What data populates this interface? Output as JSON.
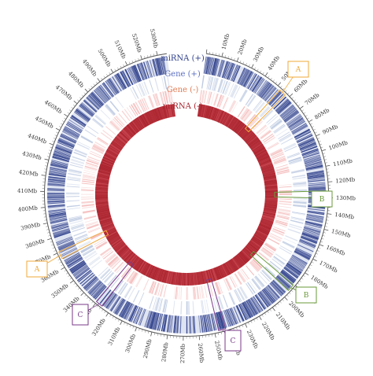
{
  "track_labels": [
    {
      "text": "miRNA (+)",
      "color": "#2e3f8a"
    },
    {
      "text": "Gene (+)",
      "color": "#5b6fc0"
    },
    {
      "text": "Gene (-)",
      "color": "#e07a52"
    },
    {
      "text": "miRNA (-)",
      "color": "#a8232d"
    }
  ],
  "tick_labels": [
    "10Mb",
    "20Mb",
    "30Mb",
    "40Mb",
    "50Mb",
    "60Mb",
    "70Mb",
    "80Mb",
    "90Mb",
    "100Mb",
    "110Mb",
    "120Mb",
    "130Mb",
    "140Mb",
    "150Mb",
    "160Mb",
    "170Mb",
    "180Mb",
    "190Mb",
    "200Mb",
    "210Mb",
    "220Mb",
    "230Mb",
    "240Mb",
    "250Mb",
    "260Mb",
    "270Mb",
    "280Mb",
    "290Mb",
    "300Mb",
    "310Mb",
    "320Mb",
    "330Mb",
    "340Mb",
    "350Mb",
    "360Mb",
    "370Mb",
    "380Mb",
    "390Mb",
    "400Mb",
    "410Mb",
    "420Mb",
    "430Mb",
    "440Mb",
    "450Mb",
    "460Mb",
    "470Mb",
    "480Mb",
    "490Mb",
    "500Mb",
    "510Mb",
    "520Mb",
    "530Mb"
  ],
  "regions": [
    {
      "label": "A",
      "color": "#f0a93a"
    },
    {
      "label": "A",
      "color": "#f0a93a"
    },
    {
      "label": "B",
      "color": "#6a9a3a"
    },
    {
      "label": "B",
      "color": "#6a9a3a"
    },
    {
      "label": "C",
      "color": "#7a3a8a"
    },
    {
      "label": "C",
      "color": "#7a3a8a"
    }
  ],
  "colors": {
    "mirna_plus": "#2e3f8a",
    "gene_plus": "#9fb2d4",
    "gene_minus": "#f0a0a0",
    "mirna_minus": "#a8232d",
    "tick": "#555555"
  }
}
